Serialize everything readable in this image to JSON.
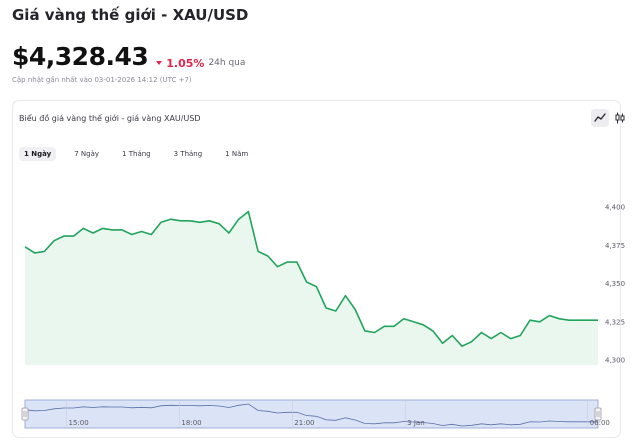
{
  "header": {
    "title": "Giá vàng thế giới - XAU/USD",
    "price": "$4,328.43",
    "change_pct": "1.05%",
    "change_period": "24h qua",
    "updated": "Cập nhật gần nhất vào 03-01-2026 14:12 (UTC +7)"
  },
  "chart_card": {
    "title": "Biểu đồ giá vàng thế giới - giá vàng XAU/USD",
    "tabs": [
      "1 Ngày",
      "7 Ngày",
      "1 Tháng",
      "3 Tháng",
      "1 Năm"
    ],
    "active_tab": 0,
    "icons": [
      "line-chart-icon",
      "candlestick-icon"
    ]
  },
  "colors": {
    "line": "#22a45d",
    "area": "#e9f7ee",
    "negative": "#e0264a",
    "navigator_fill": "#dbe3f7",
    "navigator_stroke": "#8ea0cf"
  },
  "chart_data": {
    "type": "area",
    "title": "",
    "xlabel": "",
    "ylabel": "",
    "ylim": [
      4295,
      4405
    ],
    "yticks": [
      "4,400",
      "4,375",
      "4,350",
      "4,325",
      "4,300"
    ],
    "ytick_values": [
      4400,
      4375,
      4350,
      4325,
      4300
    ],
    "navigator_ticks": [
      "15:00",
      "18:00",
      "21:00",
      "3 Jan",
      "06:00"
    ],
    "navigator_tick_positions": [
      0.0725,
      0.2695,
      0.4665,
      0.6635,
      0.982
    ],
    "series": [
      {
        "values": [
          4374,
          4370,
          4371,
          4378,
          4381,
          4381,
          4386,
          4383,
          4386,
          4385,
          4385,
          4382,
          4384,
          4382,
          4390,
          4392,
          4391,
          4391,
          4390,
          4391,
          4389,
          4383,
          4392,
          4397,
          4371,
          4368,
          4361,
          4364,
          4364,
          4351,
          4348,
          4334,
          4332,
          4342,
          4333,
          4319,
          4318,
          4322,
          4322,
          4327,
          4325,
          4323,
          4319,
          4311,
          4316,
          4309,
          4312,
          4318,
          4314,
          4318,
          4314,
          4316,
          4326,
          4325,
          4329,
          4327,
          4326,
          4326,
          4326,
          4326
        ]
      }
    ]
  }
}
